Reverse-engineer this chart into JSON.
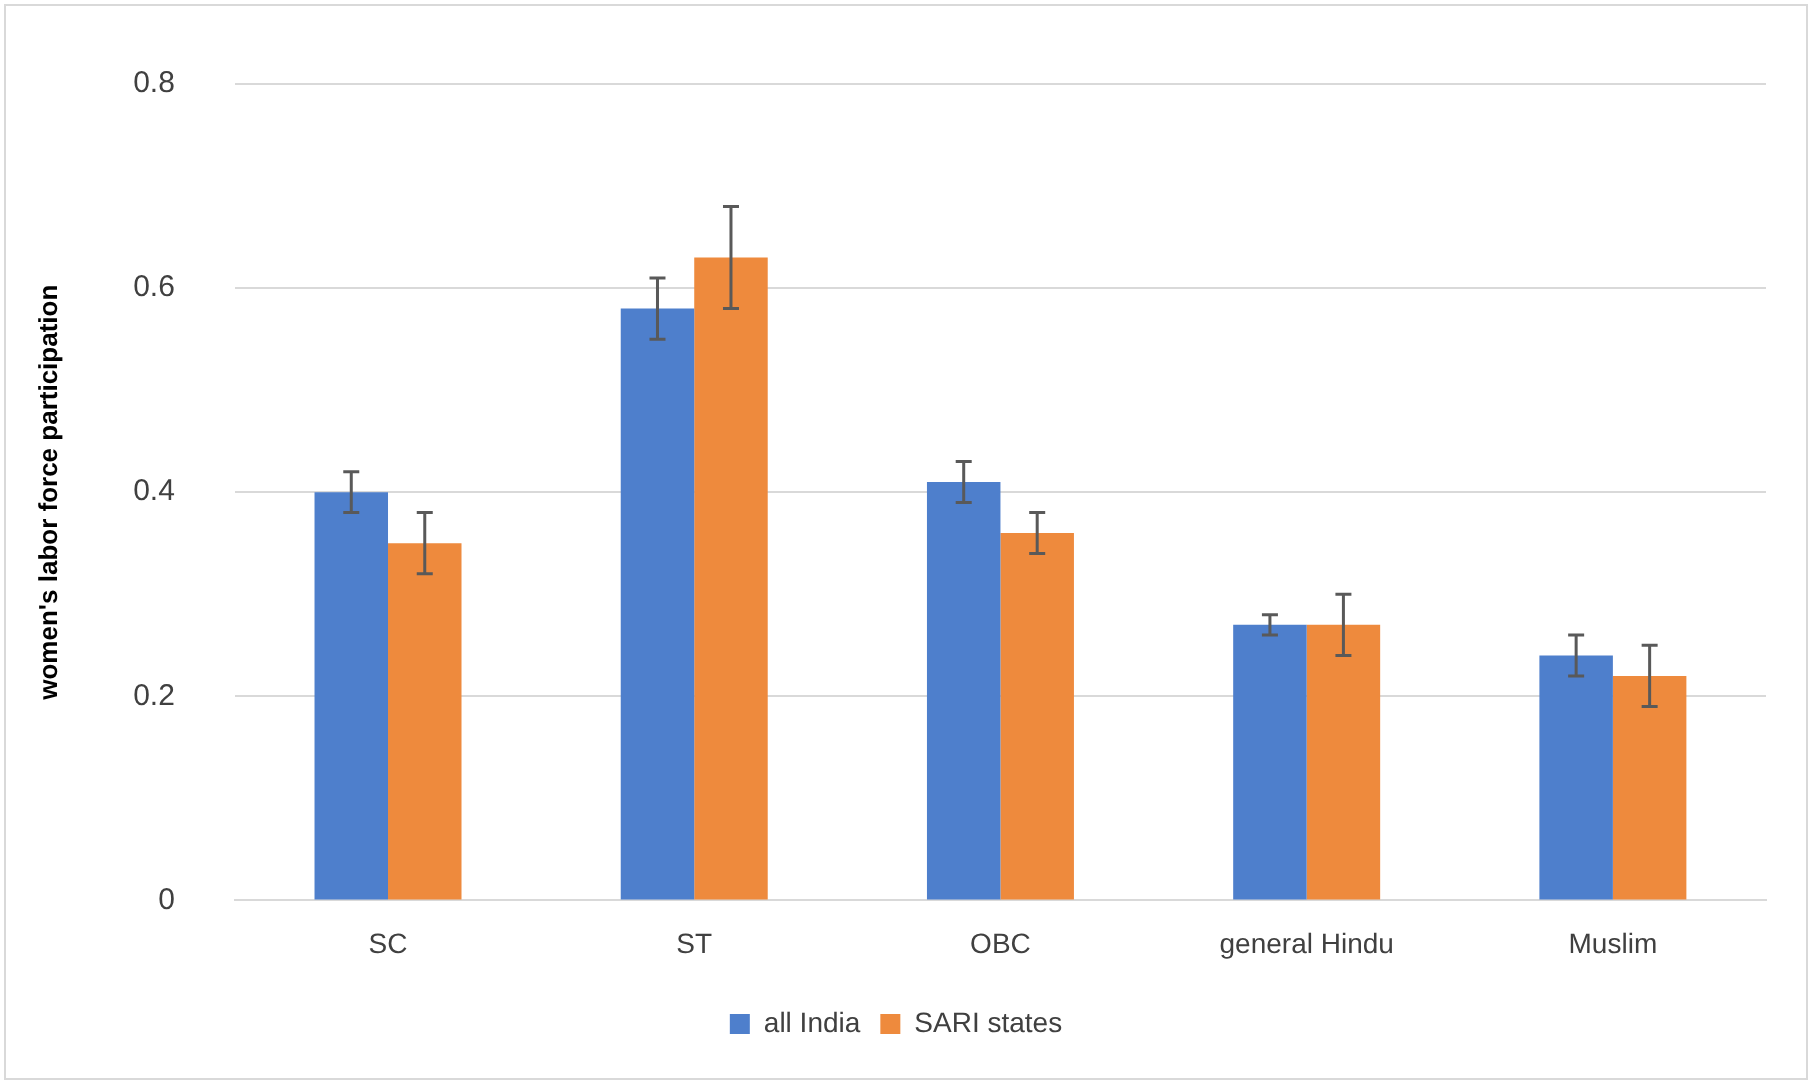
{
  "chart_data": {
    "type": "bar",
    "ylabel": "women's labor force participation",
    "categories": [
      "SC",
      "ST",
      "OBC",
      "general Hindu",
      "Muslim"
    ],
    "series": [
      {
        "name": "all India",
        "color": "#4e7fcc",
        "values": [
          0.4,
          0.58,
          0.41,
          0.27,
          0.24
        ],
        "errors": [
          0.02,
          0.03,
          0.02,
          0.01,
          0.02
        ]
      },
      {
        "name": "SARI states",
        "color": "#ee8a3d",
        "values": [
          0.35,
          0.63,
          0.36,
          0.27,
          0.22
        ],
        "errors": [
          0.03,
          0.05,
          0.02,
          0.03,
          0.03
        ]
      }
    ],
    "ylim": [
      0,
      0.8
    ],
    "yticks": [
      0,
      0.2,
      0.4,
      0.6,
      0.8
    ],
    "grid": "y",
    "legend": "bottom"
  }
}
